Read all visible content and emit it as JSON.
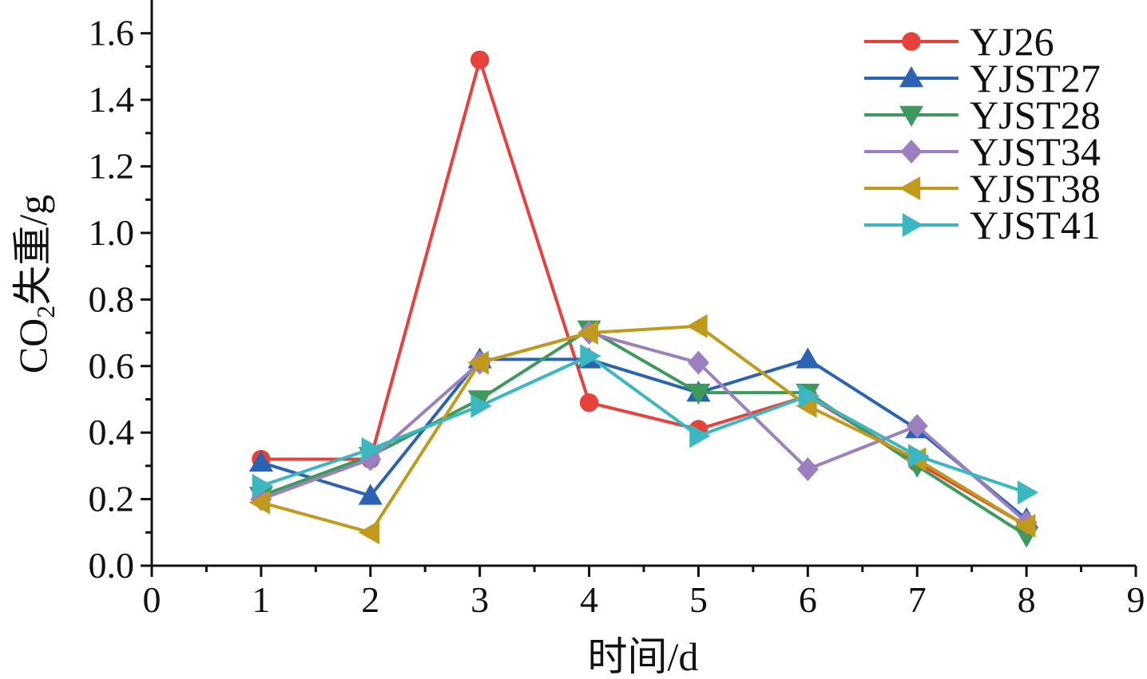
{
  "chart_data": {
    "type": "line",
    "xlabel": "时间/d",
    "ylabel_prefix": "CO",
    "ylabel_sub": "2",
    "ylabel_suffix": "失重/g",
    "xlim": [
      0,
      9
    ],
    "ylim": [
      0,
      1.7
    ],
    "xticks": [
      0,
      1,
      2,
      3,
      4,
      5,
      6,
      7,
      8,
      9
    ],
    "yticks": [
      0.0,
      0.2,
      0.4,
      0.6,
      0.8,
      1.0,
      1.2,
      1.4,
      1.6
    ],
    "ytick_labels": [
      "0.0",
      "0.2",
      "0.4",
      "0.6",
      "0.8",
      "1.0",
      "1.2",
      "1.4",
      "1.6"
    ],
    "grid": false,
    "legend_position": "top-right",
    "x": [
      1,
      2,
      3,
      4,
      5,
      6,
      7,
      8
    ],
    "series": [
      {
        "name": "YJ26",
        "color": "#e8413c",
        "marker": "circle",
        "values": [
          0.32,
          0.32,
          1.52,
          0.49,
          0.41,
          0.51,
          0.31,
          0.12
        ]
      },
      {
        "name": "YJST27",
        "color": "#2a63b4",
        "marker": "triangle-up",
        "values": [
          0.31,
          0.21,
          0.62,
          0.62,
          0.52,
          0.62,
          0.41,
          0.14
        ]
      },
      {
        "name": "YJST28",
        "color": "#3c9b5c",
        "marker": "triangle-down",
        "values": [
          0.21,
          0.33,
          0.5,
          0.71,
          0.52,
          0.52,
          0.3,
          0.09
        ]
      },
      {
        "name": "YJST34",
        "color": "#9b7fbf",
        "marker": "diamond",
        "values": [
          0.2,
          0.32,
          0.61,
          0.7,
          0.61,
          0.29,
          0.42,
          0.13
        ]
      },
      {
        "name": "YJST38",
        "color": "#c19a1b",
        "marker": "triangle-left",
        "values": [
          0.19,
          0.1,
          0.61,
          0.7,
          0.72,
          0.48,
          0.32,
          0.12
        ]
      },
      {
        "name": "YJST41",
        "color": "#3ab7c1",
        "marker": "triangle-right",
        "values": [
          0.24,
          0.35,
          0.48,
          0.63,
          0.39,
          0.51,
          0.33,
          0.22
        ]
      }
    ]
  }
}
